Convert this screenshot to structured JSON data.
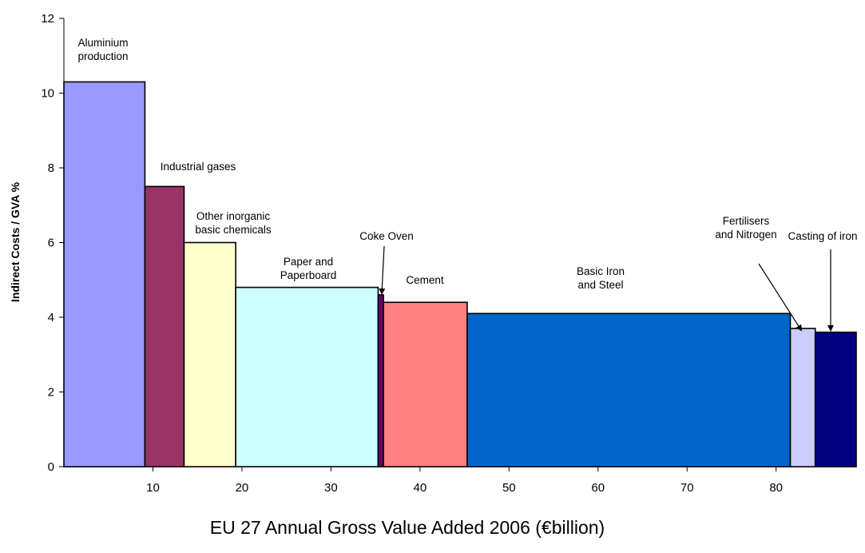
{
  "chart_data": {
    "type": "bar",
    "variant": "variable-width",
    "title": "",
    "xlabel": "EU 27 Annual Gross Value Added 2006 (€billion)",
    "ylabel": "Indirect Costs / GVA %",
    "xlim": [
      0,
      89
    ],
    "ylim": [
      0,
      12
    ],
    "x_ticks": [
      10,
      20,
      30,
      40,
      50,
      60,
      70,
      80
    ],
    "y_ticks": [
      0,
      2,
      4,
      6,
      8,
      10,
      12
    ],
    "grid": false,
    "legend": "none",
    "bars": [
      {
        "label": "Aluminium production",
        "lines": [
          "Aluminium",
          "production"
        ],
        "x_start": 0,
        "x_end": 9.1,
        "value": 10.3,
        "color": "#9999ff"
      },
      {
        "label": "Industrial gases",
        "lines": [
          "Industrial gases"
        ],
        "x_start": 9.1,
        "x_end": 13.5,
        "value": 7.5,
        "color": "#993366"
      },
      {
        "label": "Other inorganic basic chemicals",
        "lines": [
          "Other inorganic",
          "basic chemicals"
        ],
        "x_start": 13.5,
        "x_end": 19.3,
        "value": 6.0,
        "color": "#ffffcc"
      },
      {
        "label": "Paper and Paperboard",
        "lines": [
          "Paper and",
          "Paperboard"
        ],
        "x_start": 19.3,
        "x_end": 35.3,
        "value": 4.8,
        "color": "#ccffff"
      },
      {
        "label": "Coke Oven",
        "lines": [
          "Coke Oven"
        ],
        "x_start": 35.3,
        "x_end": 35.9,
        "value": 4.6,
        "color": "#660066"
      },
      {
        "label": "Cement",
        "lines": [
          "Cement"
        ],
        "x_start": 35.9,
        "x_end": 45.3,
        "value": 4.4,
        "color": "#ff8080"
      },
      {
        "label": "Basic Iron and Steel",
        "lines": [
          "Basic Iron",
          "and Steel"
        ],
        "x_start": 45.3,
        "x_end": 81.6,
        "value": 4.1,
        "color": "#0066cc"
      },
      {
        "label": "Fertilisers and Nitrogen",
        "lines": [
          "Fertilisers",
          "and Nitrogen"
        ],
        "x_start": 81.6,
        "x_end": 84.4,
        "value": 3.7,
        "color": "#ccccff"
      },
      {
        "label": "Casting of iron",
        "lines": [
          "Casting of iron"
        ],
        "x_start": 84.4,
        "x_end": 89,
        "value": 3.6,
        "color": "#000080"
      }
    ]
  }
}
